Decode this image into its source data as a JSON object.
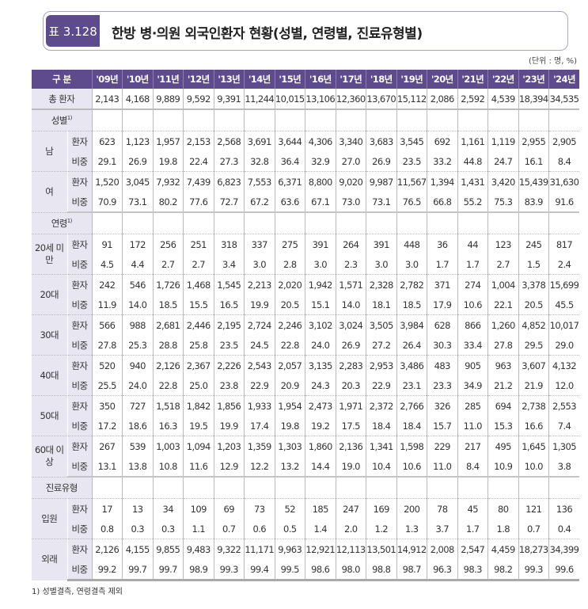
{
  "title": {
    "tag": "표 3.128",
    "text": "한방 병·의원 외국인환자 현황(성별, 연령별, 진료유형별)"
  },
  "unit": "(단위 : 명, %)",
  "header": {
    "label": "구 분",
    "years": [
      "'09년",
      "'10년",
      "'11년",
      "'12년",
      "'13년",
      "'14년",
      "'15년",
      "'16년",
      "'17년",
      "'18년",
      "'19년",
      "'20년",
      "'21년",
      "'22년",
      "'23년",
      "'24년"
    ]
  },
  "total": {
    "label": "총 환자",
    "values": [
      "2,143",
      "4,168",
      "9,889",
      "9,592",
      "9,391",
      "11,244",
      "10,015",
      "13,106",
      "12,360",
      "13,670",
      "15,112",
      "2,086",
      "2,592",
      "4,539",
      "18,394",
      "34,535"
    ]
  },
  "sub_labels": {
    "patients": "환자",
    "share": "비중"
  },
  "sections": [
    {
      "label": "성별",
      "note": "1)",
      "groups": [
        {
          "label": "남",
          "patients": [
            "623",
            "1,123",
            "1,957",
            "2,153",
            "2,568",
            "3,691",
            "3,644",
            "4,306",
            "3,340",
            "3,683",
            "3,545",
            "692",
            "1,161",
            "1,119",
            "2,955",
            "2,905"
          ],
          "share": [
            "29.1",
            "26.9",
            "19.8",
            "22.4",
            "27.3",
            "32.8",
            "36.4",
            "32.9",
            "27.0",
            "26.9",
            "23.5",
            "33.2",
            "44.8",
            "24.7",
            "16.1",
            "8.4"
          ]
        },
        {
          "label": "여",
          "patients": [
            "1,520",
            "3,045",
            "7,932",
            "7,439",
            "6,823",
            "7,553",
            "6,371",
            "8,800",
            "9,020",
            "9,987",
            "11,567",
            "1,394",
            "1,431",
            "3,420",
            "15,439",
            "31,630"
          ],
          "share": [
            "70.9",
            "73.1",
            "80.2",
            "77.6",
            "72.7",
            "67.2",
            "63.6",
            "67.1",
            "73.0",
            "73.1",
            "76.5",
            "66.8",
            "55.2",
            "75.3",
            "83.9",
            "91.6"
          ]
        }
      ]
    },
    {
      "label": "연령",
      "note": "1)",
      "groups": [
        {
          "label": "20세 미만",
          "patients": [
            "91",
            "172",
            "256",
            "251",
            "318",
            "337",
            "275",
            "391",
            "264",
            "391",
            "448",
            "36",
            "44",
            "123",
            "245",
            "817"
          ],
          "share": [
            "4.5",
            "4.4",
            "2.7",
            "2.7",
            "3.4",
            "3.0",
            "2.8",
            "3.0",
            "2.3",
            "3.0",
            "3.0",
            "1.7",
            "1.7",
            "2.7",
            "1.5",
            "2.4"
          ]
        },
        {
          "label": "20대",
          "patients": [
            "242",
            "546",
            "1,726",
            "1,468",
            "1,545",
            "2,213",
            "2,020",
            "1,942",
            "1,571",
            "2,328",
            "2,782",
            "371",
            "274",
            "1,004",
            "3,378",
            "15,699"
          ],
          "share": [
            "11.9",
            "14.0",
            "18.5",
            "15.5",
            "16.5",
            "19.9",
            "20.5",
            "15.1",
            "14.0",
            "18.1",
            "18.5",
            "17.9",
            "10.6",
            "22.1",
            "20.5",
            "45.5"
          ]
        },
        {
          "label": "30대",
          "patients": [
            "566",
            "988",
            "2,681",
            "2,446",
            "2,195",
            "2,724",
            "2,246",
            "3,102",
            "3,024",
            "3,505",
            "3,984",
            "628",
            "866",
            "1,260",
            "4,852",
            "10,017"
          ],
          "share": [
            "27.8",
            "25.3",
            "28.8",
            "25.8",
            "23.5",
            "24.5",
            "22.8",
            "24.0",
            "26.9",
            "27.2",
            "26.4",
            "30.3",
            "33.4",
            "27.8",
            "29.5",
            "29.0"
          ]
        },
        {
          "label": "40대",
          "patients": [
            "520",
            "940",
            "2,126",
            "2,367",
            "2,226",
            "2,543",
            "2,057",
            "3,135",
            "2,283",
            "2,953",
            "3,486",
            "483",
            "905",
            "963",
            "3,607",
            "4,132"
          ],
          "share": [
            "25.5",
            "24.0",
            "22.8",
            "25.0",
            "23.8",
            "22.9",
            "20.9",
            "24.3",
            "20.3",
            "22.9",
            "23.1",
            "23.3",
            "34.9",
            "21.2",
            "21.9",
            "12.0"
          ]
        },
        {
          "label": "50대",
          "patients": [
            "350",
            "727",
            "1,518",
            "1,842",
            "1,856",
            "1,933",
            "1,954",
            "2,473",
            "1,971",
            "2,372",
            "2,766",
            "326",
            "285",
            "694",
            "2,738",
            "2,553"
          ],
          "share": [
            "17.2",
            "18.6",
            "16.3",
            "19.5",
            "19.9",
            "17.4",
            "19.8",
            "19.2",
            "17.5",
            "18.4",
            "18.4",
            "15.7",
            "11.0",
            "15.3",
            "16.6",
            "7.4"
          ]
        },
        {
          "label": "60대 이상",
          "patients": [
            "267",
            "539",
            "1,003",
            "1,094",
            "1,203",
            "1,359",
            "1,303",
            "1,860",
            "2,136",
            "1,341",
            "1,598",
            "229",
            "217",
            "495",
            "1,645",
            "1,305"
          ],
          "share": [
            "13.1",
            "13.8",
            "10.8",
            "11.6",
            "12.9",
            "12.2",
            "13.2",
            "14.4",
            "19.0",
            "10.4",
            "10.6",
            "11.0",
            "8.4",
            "10.9",
            "10.0",
            "3.8"
          ]
        }
      ]
    },
    {
      "label": "진료유형",
      "note": "",
      "groups": [
        {
          "label": "입원",
          "patients": [
            "17",
            "13",
            "34",
            "109",
            "69",
            "73",
            "52",
            "185",
            "247",
            "169",
            "200",
            "78",
            "45",
            "80",
            "121",
            "136"
          ],
          "share": [
            "0.8",
            "0.3",
            "0.3",
            "1.1",
            "0.7",
            "0.6",
            "0.5",
            "1.4",
            "2.0",
            "1.2",
            "1.3",
            "3.7",
            "1.7",
            "1.8",
            "0.7",
            "0.4"
          ]
        },
        {
          "label": "외래",
          "patients": [
            "2,126",
            "4,155",
            "9,855",
            "9,483",
            "9,322",
            "11,171",
            "9,963",
            "12,921",
            "12,113",
            "13,501",
            "14,912",
            "2,008",
            "2,547",
            "4,459",
            "18,273",
            "34,399"
          ],
          "share": [
            "99.2",
            "99.7",
            "99.7",
            "98.9",
            "99.3",
            "99.4",
            "99.5",
            "98.6",
            "98.0",
            "98.8",
            "98.7",
            "96.3",
            "98.3",
            "98.2",
            "99.3",
            "99.6"
          ]
        }
      ]
    }
  ],
  "footnote": "1) 성별결측, 연령결측 제외"
}
